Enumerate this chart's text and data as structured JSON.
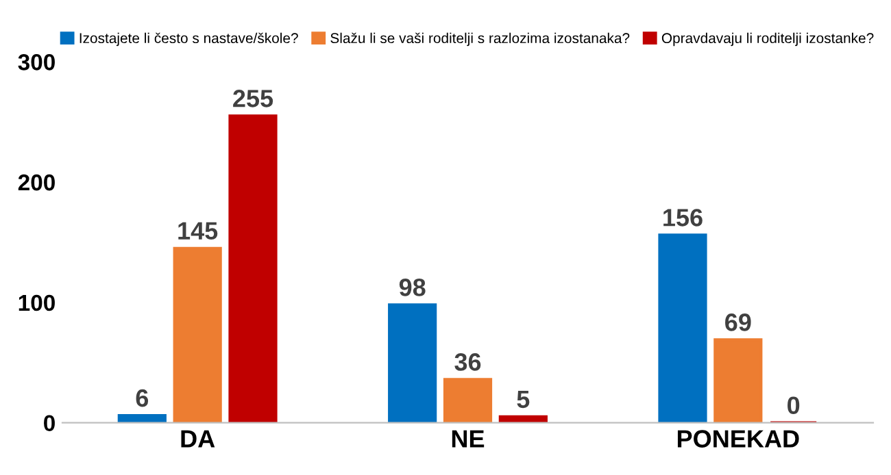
{
  "chart_data": {
    "type": "bar",
    "categories": [
      "DA",
      "NE",
      "PONEKAD"
    ],
    "series": [
      {
        "name": "Izostajete li često s nastave/škole?",
        "color": "#0070c0",
        "values": [
          6,
          98,
          156
        ]
      },
      {
        "name": "Slažu li se vaši roditelji s razlozima izostanaka?",
        "color": "#ed7d31",
        "values": [
          145,
          36,
          69
        ]
      },
      {
        "name": "Opravdavaju li roditelji izostanke?",
        "color": "#c00000",
        "values": [
          255,
          5,
          0
        ]
      }
    ],
    "ylim": [
      0,
      300
    ],
    "yticks": [
      0,
      100,
      200,
      300
    ],
    "grid": false,
    "legend": "top",
    "data_labels": true
  }
}
